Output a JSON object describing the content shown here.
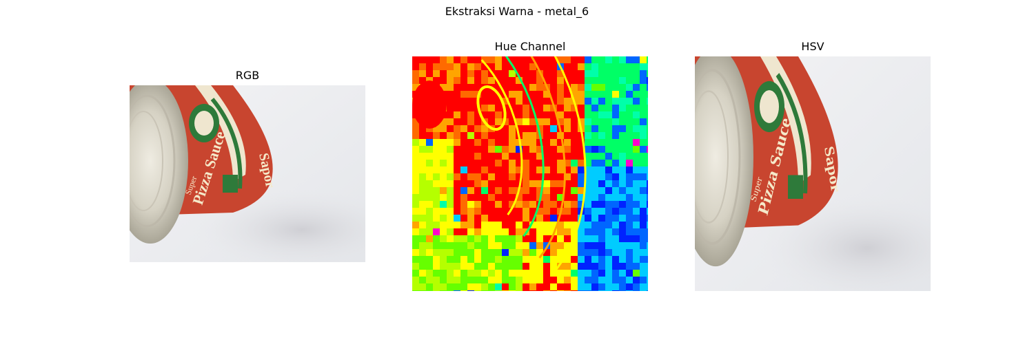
{
  "figure": {
    "title": "Ekstraksi Warna - metal_6"
  },
  "panels": {
    "rgb": {
      "title": "RGB"
    },
    "hue": {
      "title": "Hue Channel"
    },
    "hsv": {
      "title": "HSV"
    }
  },
  "can_label": {
    "brand_small": "Super",
    "brand_main": "Pizza Sauce",
    "side_text": "Sapor"
  },
  "colors": {
    "background": "#ffffff",
    "surface": "#e9eaec",
    "can_red": "#c8452f",
    "can_cream": "#efe6cf",
    "can_green": "#2e7a3a",
    "metal": "#d9d6cc"
  },
  "hue_palette": [
    "#ff0000",
    "#ff6a00",
    "#ffa500",
    "#ffff00",
    "#b5ff00",
    "#66ff00",
    "#00ff66",
    "#00ffaa",
    "#00ccff",
    "#0066ff",
    "#0022ff",
    "#ff00cc"
  ]
}
